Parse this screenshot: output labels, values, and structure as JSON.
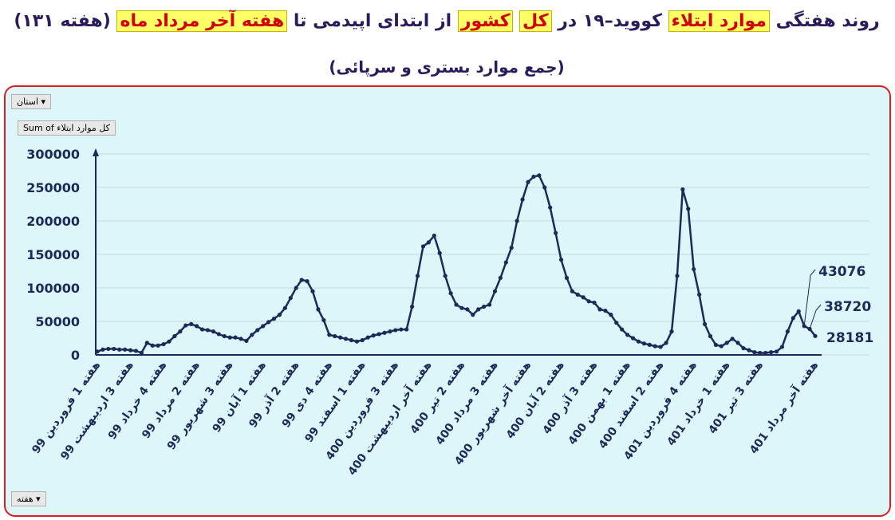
{
  "chart_data": {
    "type": "line",
    "title_parts": [
      {
        "text": "روند هفتگی ",
        "highlight": false
      },
      {
        "text": "موارد ابتلاء",
        "highlight": true
      },
      {
        "text": " کووید–۱۹ در ",
        "highlight": false
      },
      {
        "text": "کل",
        "highlight": true
      },
      {
        "text": " ",
        "highlight": false
      },
      {
        "text": "کشور",
        "highlight": true
      },
      {
        "text": " از ابتدای اپیدمی تا ",
        "highlight": false
      },
      {
        "text": "هفته آخر مرداد ماه",
        "highlight": true
      },
      {
        "text": " (هفته ۱۳۱)",
        "highlight": false
      }
    ],
    "subtitle": "(جمع موارد بستری و سرپائی)",
    "filter_buttons": [
      "استان",
      "Sum of کل موارد ابتلاء",
      "هفته"
    ],
    "categories": [
      "هفته 1 فروردین 99",
      null,
      null,
      null,
      null,
      null,
      "هفته 3 اردیبهشت 99",
      null,
      null,
      null,
      null,
      null,
      "هفته 4 خرداد 99",
      null,
      null,
      null,
      null,
      null,
      "هفته 2 مرداد 99",
      null,
      null,
      null,
      null,
      null,
      "هفته 3 شهریور 99",
      null,
      null,
      null,
      null,
      null,
      "هفته 1 آبان 99",
      null,
      null,
      null,
      null,
      null,
      "هفته 2 آذر 99",
      null,
      null,
      null,
      null,
      null,
      "هفته 4 دی 99",
      null,
      null,
      null,
      null,
      null,
      "هفته 1 اسفند 99",
      null,
      null,
      null,
      null,
      null,
      "هفته 3 فروردین 400",
      null,
      null,
      null,
      null,
      null,
      "هفته آخر اردیبهشت 400",
      null,
      null,
      null,
      null,
      null,
      "هفته 2 تیر 400",
      null,
      null,
      null,
      null,
      null,
      "هفته 3 مرداد 400",
      null,
      null,
      null,
      null,
      null,
      "هفته آخر شهریور 400",
      null,
      null,
      null,
      null,
      null,
      "هفته 2 آبان 400",
      null,
      null,
      null,
      null,
      null,
      "هفته 3 آذر 400",
      null,
      null,
      null,
      null,
      null,
      "هفته 1 بهمن 400",
      null,
      null,
      null,
      null,
      null,
      "هفته 2 اسفند 400",
      null,
      null,
      null,
      null,
      null,
      "هفته 4 فروردین 401",
      null,
      null,
      null,
      null,
      null,
      "هفته 1 خرداد 401",
      null,
      null,
      null,
      null,
      null,
      "هفته 3 تیر 401",
      null,
      null,
      null,
      null,
      null,
      null,
      null,
      null,
      null,
      "هفته آخر مرداد 401"
    ],
    "series": [
      {
        "name": "کل موارد ابتلاء",
        "color": "#1c2a5a",
        "values": [
          5000,
          8000,
          9000,
          9000,
          8000,
          8000,
          7000,
          6000,
          3000,
          18000,
          14000,
          14000,
          16000,
          20000,
          28000,
          35000,
          44000,
          46000,
          43000,
          38000,
          37000,
          35000,
          31000,
          28000,
          26000,
          26000,
          24000,
          21000,
          30000,
          37000,
          43000,
          49000,
          54000,
          60000,
          70000,
          85000,
          100000,
          112000,
          110000,
          95000,
          68000,
          52000,
          30000,
          28000,
          26000,
          24000,
          22000,
          20000,
          22000,
          26000,
          29000,
          31000,
          33000,
          35000,
          37000,
          38000,
          38000,
          72000,
          118000,
          162000,
          168000,
          178000,
          152000,
          118000,
          92000,
          75000,
          70000,
          68000,
          60000,
          68000,
          72000,
          75000,
          95000,
          115000,
          138000,
          160000,
          200000,
          232000,
          258000,
          266000,
          268000,
          250000,
          220000,
          182000,
          142000,
          115000,
          95000,
          90000,
          86000,
          80000,
          78000,
          68000,
          66000,
          60000,
          48000,
          38000,
          30000,
          25000,
          20000,
          17000,
          15000,
          13000,
          12000,
          18000,
          35000,
          118000,
          247000,
          218000,
          128000,
          90000,
          46000,
          28000,
          15000,
          13000,
          18000,
          24000,
          18000,
          10000,
          7000,
          4000,
          3000,
          3000,
          4000,
          5000,
          12000,
          35000,
          55000,
          65000,
          43076,
          38720,
          28181
        ]
      }
    ],
    "labeled_points": [
      128,
      129,
      130
    ],
    "ylim": [
      0,
      300000
    ],
    "yticks": [
      0,
      50000,
      100000,
      150000,
      200000,
      250000,
      300000
    ],
    "grid": true
  }
}
